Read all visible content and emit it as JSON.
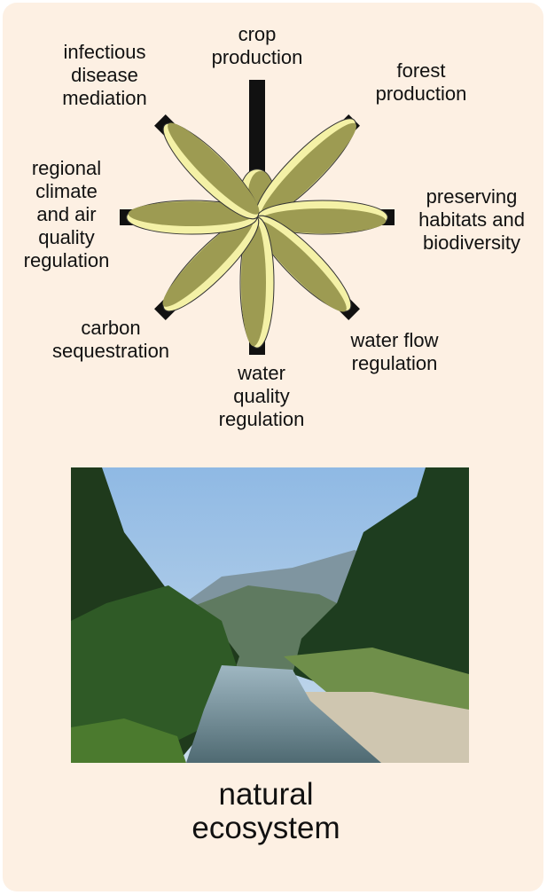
{
  "chart_data": {
    "type": "flower",
    "categories": [
      "crop production",
      "forest production",
      "preserving habitats and biodiversity",
      "water flow regulation",
      "water quality regulation",
      "carbon sequestration",
      "regional climate and air quality regulation",
      "infectious disease mediation"
    ],
    "values": [
      0.35,
      1,
      0.95,
      0.95,
      0.95,
      0.95,
      0.95,
      0.95
    ],
    "rlim": [
      0,
      1
    ],
    "color": "#9d9b52",
    "caption": "natural ecosystem"
  }
}
